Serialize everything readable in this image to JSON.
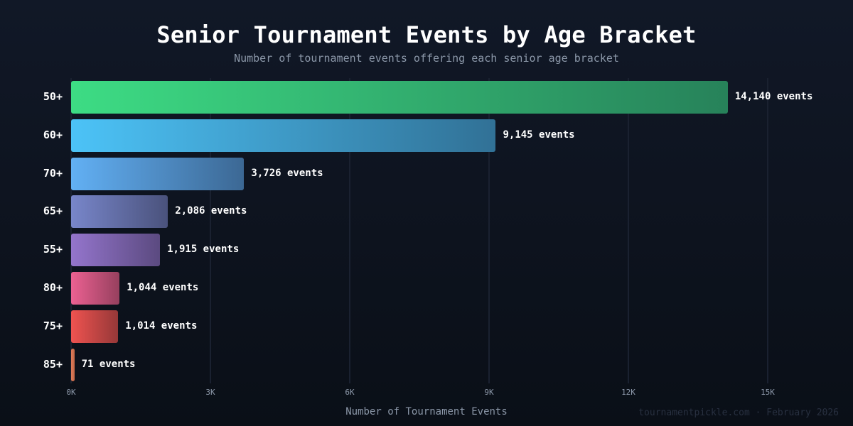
{
  "header": {
    "title": "Senior Tournament Events by Age Bracket",
    "subtitle": "Number of tournament events offering each senior age bracket"
  },
  "axis": {
    "xlabel": "Number of Tournament Events",
    "ticks": [
      "0K",
      "3K",
      "6K",
      "9K",
      "12K",
      "15K"
    ]
  },
  "footer": {
    "credit": "tournamentpickle.com · February 2026"
  },
  "bars": [
    {
      "label": "50+",
      "value": 14140,
      "text": "14,140 events",
      "color_start": "#3ddc84",
      "color_end": "#27825a"
    },
    {
      "label": "60+",
      "value": 9145,
      "text": "9,145 events",
      "color_start": "#4cc3f7",
      "color_end": "#317196"
    },
    {
      "label": "70+",
      "value": 3726,
      "text": "3,726 events",
      "color_start": "#62b0f4",
      "color_end": "#3c6894"
    },
    {
      "label": "65+",
      "value": 2086,
      "text": "2,086 events",
      "color_start": "#7886ca",
      "color_end": "#4a527c"
    },
    {
      "label": "55+",
      "value": 1915,
      "text": "1,915 events",
      "color_start": "#9475cc",
      "color_end": "#5b4a80"
    },
    {
      "label": "80+",
      "value": 1044,
      "text": "1,044 events",
      "color_start": "#ec6192",
      "color_end": "#96405e"
    },
    {
      "label": "75+",
      "value": 1014,
      "text": "1,014 events",
      "color_start": "#ef5350",
      "color_end": "#963838"
    },
    {
      "label": "85+",
      "value": 71,
      "text": "71 events",
      "color_start": "#e07a58",
      "color_end": "#c06848"
    }
  ],
  "chart_data": {
    "type": "bar",
    "orientation": "horizontal",
    "title": "Senior Tournament Events by Age Bracket",
    "subtitle": "Number of tournament events offering each senior age bracket",
    "categories": [
      "50+",
      "60+",
      "70+",
      "65+",
      "55+",
      "80+",
      "75+",
      "85+"
    ],
    "values": [
      14140,
      9145,
      3726,
      2086,
      1915,
      1044,
      1014,
      71
    ],
    "data_labels": [
      "14,140 events",
      "9,145 events",
      "3,726 events",
      "2,086 events",
      "1,915 events",
      "1,044 events",
      "1,014 events",
      "71 events"
    ],
    "xlabel": "Number of Tournament Events",
    "ylabel": "",
    "xlim": [
      0,
      15000
    ],
    "xticks": [
      "0K",
      "3K",
      "6K",
      "9K",
      "12K",
      "15K"
    ],
    "grid": "vertical",
    "legend": "none",
    "annotation": "tournamentpickle.com · February 2026"
  }
}
